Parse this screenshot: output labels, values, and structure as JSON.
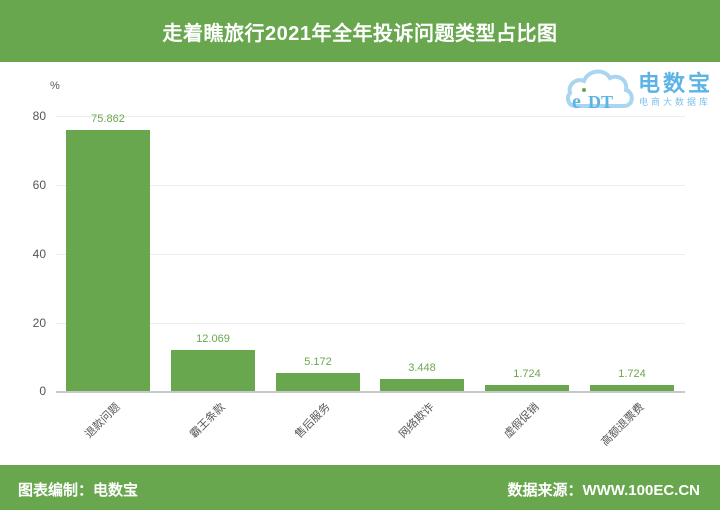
{
  "header": {
    "title": "走着瞧旅行2021年全年投诉问题类型占比图"
  },
  "logo": {
    "brand": "电数宝",
    "tagline": "电商大数据库",
    "mark": "eDT"
  },
  "footer": {
    "left": "图表编制：电数宝",
    "right": "数据来源：WWW.100EC.CN"
  },
  "colors": {
    "accent": "#69a74f",
    "bar": "#69a74f",
    "value_label": "#6aa84f",
    "logo": "#5bb3e6"
  },
  "chart_data": {
    "type": "bar",
    "title": "走着瞧旅行2021年全年投诉问题类型占比图",
    "xlabel": "",
    "ylabel": "%",
    "ylim": [
      0,
      80
    ],
    "yticks": [
      "0",
      "20",
      "40",
      "60",
      "80"
    ],
    "grid": true,
    "legend": null,
    "categories": [
      "退款问题",
      "霸王条款",
      "售后服务",
      "网络欺诈",
      "虚假促销",
      "高额退票费"
    ],
    "values": [
      75.862,
      12.069,
      5.172,
      3.448,
      1.724,
      1.724
    ],
    "value_labels": [
      "75.862",
      "12.069",
      "5.172",
      "3.448",
      "1.724",
      "1.724"
    ]
  }
}
